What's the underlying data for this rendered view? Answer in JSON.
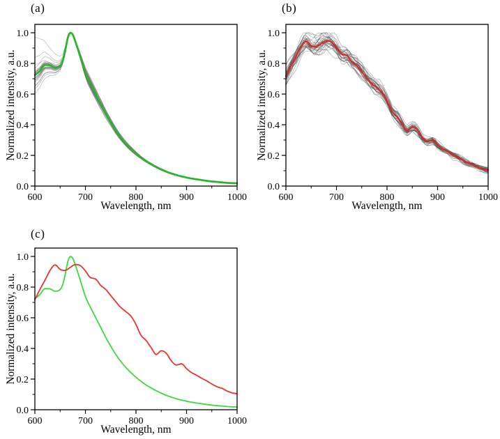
{
  "chart_data": [
    {
      "id": "a",
      "label": "(a)",
      "type": "line",
      "xlabel": "Wavelength, nm",
      "ylabel": "Normalized intensity, a.u.",
      "xlim": [
        600,
        1000
      ],
      "ylim": [
        0,
        1.055
      ],
      "xticks": [
        600,
        700,
        800,
        900,
        1000
      ],
      "xminorticks": [
        650,
        750,
        850,
        950
      ],
      "yticks": [
        0.0,
        0.2,
        0.4,
        0.6,
        0.8,
        1.0
      ],
      "yminorticks": [
        0.1,
        0.3,
        0.5,
        0.7,
        0.9
      ],
      "grid": false,
      "legend": "none",
      "series": [
        {
          "name": "individual-spectra",
          "kind": "ensemble",
          "model": "converging",
          "count": 26,
          "seed": 11,
          "color": "#565656",
          "opacity": 0.5,
          "width": 0.6,
          "spread_at_600nm": [
            0.6,
            0.93
          ],
          "note": "thin gray spectra converging to common peak at 670 nm (normalized to 1.0)"
        },
        {
          "name": "average-spectrum",
          "kind": "mean",
          "color": "#2db32d",
          "width": 2.8,
          "x": [
            600,
            610,
            620,
            630,
            640,
            650,
            655,
            660,
            665,
            670,
            675,
            680,
            685,
            690,
            700,
            710,
            720,
            730,
            740,
            750,
            760,
            770,
            780,
            790,
            800,
            810,
            820,
            830,
            840,
            850,
            860,
            870,
            880,
            890,
            900,
            910,
            920,
            930,
            940,
            950,
            960,
            970,
            980,
            990,
            1000
          ],
          "y": [
            0.724,
            0.752,
            0.79,
            0.788,
            0.773,
            0.785,
            0.815,
            0.883,
            0.965,
            1.0,
            0.988,
            0.944,
            0.895,
            0.842,
            0.739,
            0.667,
            0.603,
            0.539,
            0.473,
            0.415,
            0.361,
            0.315,
            0.276,
            0.242,
            0.212,
            0.185,
            0.162,
            0.142,
            0.124,
            0.108,
            0.094,
            0.082,
            0.072,
            0.063,
            0.056,
            0.049,
            0.044,
            0.039,
            0.034,
            0.03,
            0.027,
            0.024,
            0.021,
            0.019,
            0.018
          ]
        }
      ]
    },
    {
      "id": "b",
      "label": "(b)",
      "type": "line",
      "xlabel": "Wavelength, nm",
      "ylabel": "Normalized intensity, a.u.",
      "xlim": [
        600,
        1000
      ],
      "ylim": [
        0,
        1.055
      ],
      "xticks": [
        600,
        700,
        800,
        900,
        1000
      ],
      "xminorticks": [
        650,
        750,
        850,
        950
      ],
      "yticks": [
        0.0,
        0.2,
        0.4,
        0.6,
        0.8,
        1.0
      ],
      "yminorticks": [
        0.1,
        0.3,
        0.5,
        0.7,
        0.9
      ],
      "grid": false,
      "legend": "none",
      "series": [
        {
          "name": "individual-spectra",
          "kind": "ensemble",
          "model": "noisy",
          "count": 30,
          "seed": 23,
          "color": "#4e4e4e",
          "opacity": 0.55,
          "width": 0.6,
          "note": "noisy gray spectra, several clipped at 1.0 between 620-700 nm"
        },
        {
          "name": "average-spectrum",
          "kind": "mean",
          "color": "#dd2822",
          "width": 2.2,
          "x": [
            600,
            610,
            620,
            630,
            640,
            650,
            660,
            670,
            680,
            690,
            700,
            710,
            720,
            730,
            740,
            750,
            760,
            770,
            780,
            790,
            800,
            810,
            820,
            830,
            840,
            850,
            860,
            870,
            880,
            890,
            900,
            910,
            920,
            930,
            940,
            950,
            960,
            970,
            980,
            990,
            1000
          ],
          "y": [
            0.717,
            0.785,
            0.845,
            0.909,
            0.945,
            0.915,
            0.909,
            0.929,
            0.947,
            0.94,
            0.905,
            0.862,
            0.853,
            0.812,
            0.785,
            0.745,
            0.705,
            0.667,
            0.64,
            0.61,
            0.556,
            0.485,
            0.452,
            0.405,
            0.36,
            0.385,
            0.368,
            0.318,
            0.292,
            0.3,
            0.268,
            0.242,
            0.225,
            0.205,
            0.188,
            0.168,
            0.15,
            0.14,
            0.122,
            0.11,
            0.104
          ]
        }
      ]
    },
    {
      "id": "c",
      "label": "(c)",
      "type": "line",
      "xlabel": "Wavelength, nm",
      "ylabel": "Normalized intensity, a.u.",
      "xlim": [
        600,
        1000
      ],
      "ylim": [
        0,
        1.055
      ],
      "xticks": [
        600,
        700,
        800,
        900,
        1000
      ],
      "xminorticks": [
        650,
        750,
        850,
        950
      ],
      "yticks": [
        0.0,
        0.2,
        0.4,
        0.6,
        0.8,
        1.0
      ],
      "yminorticks": [
        0.1,
        0.3,
        0.5,
        0.7,
        0.9
      ],
      "grid": false,
      "legend": "none",
      "series": [
        {
          "name": "average-spectrum-sharp-peak",
          "kind": "mean",
          "use_series_of_panel": 0,
          "color": "#3ed63e",
          "width": 1.8,
          "note": "same data as green average of panel (a)"
        },
        {
          "name": "average-spectrum-broad",
          "kind": "mean",
          "use_series_of_panel": 1,
          "color": "#e6352c",
          "width": 1.8,
          "note": "same data as red average of panel (b), drawn on top"
        }
      ]
    }
  ]
}
